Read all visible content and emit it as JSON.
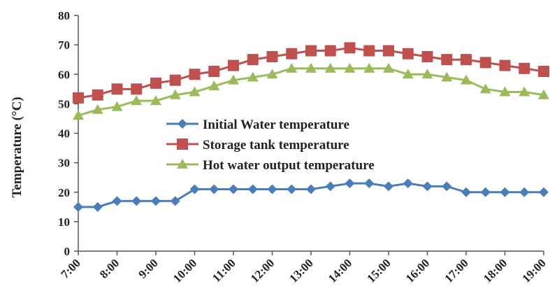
{
  "chart_data": {
    "type": "line",
    "ylabel": "Temperature (°C)",
    "xlabel": "",
    "ylim": [
      0,
      80
    ],
    "ytick_step": 10,
    "yticks": [
      "0",
      "10",
      "20",
      "30",
      "40",
      "50",
      "60",
      "70",
      "80"
    ],
    "x_tick_labels": [
      "7:00",
      "8:00",
      "9:00",
      "10:00",
      "11:00",
      "12:00",
      "13:00",
      "14:00",
      "15:00",
      "16:00",
      "17:00",
      "18:00",
      "19:00"
    ],
    "x_hours": [
      7.0,
      7.5,
      8.0,
      8.5,
      9.0,
      9.5,
      10.0,
      10.5,
      11.0,
      11.5,
      12.0,
      12.5,
      13.0,
      13.5,
      14.0,
      14.5,
      15.0,
      15.5,
      16.0,
      16.5,
      17.0,
      17.5,
      18.0,
      18.5,
      19.0
    ],
    "xlim_hours": [
      7.0,
      19.0
    ],
    "grid": false,
    "legend_position": "center-left, inside plot",
    "series": [
      {
        "name": "Initial Water temperature",
        "color": "#4a7ebb",
        "marker": "diamond",
        "values": [
          15,
          15,
          17,
          17,
          17,
          17,
          21,
          21,
          21,
          21,
          21,
          21,
          21,
          22,
          23,
          23,
          22,
          23,
          22,
          22,
          20,
          20,
          20,
          20,
          20
        ]
      },
      {
        "name": "Storage tank temperature",
        "color": "#c0504d",
        "marker": "square",
        "values": [
          52,
          53,
          55,
          55,
          57,
          58,
          60,
          61,
          63,
          65,
          66,
          67,
          68,
          68,
          69,
          68,
          68,
          67,
          66,
          65,
          65,
          64,
          63,
          62,
          61
        ]
      },
      {
        "name": "Hot water output temperature",
        "color": "#9bbb59",
        "marker": "triangle",
        "values": [
          46,
          48,
          49,
          51,
          51,
          53,
          54,
          56,
          58,
          59,
          60,
          62,
          62,
          62,
          62,
          62,
          62,
          60,
          60,
          59,
          58,
          55,
          54,
          54,
          53
        ]
      }
    ]
  }
}
